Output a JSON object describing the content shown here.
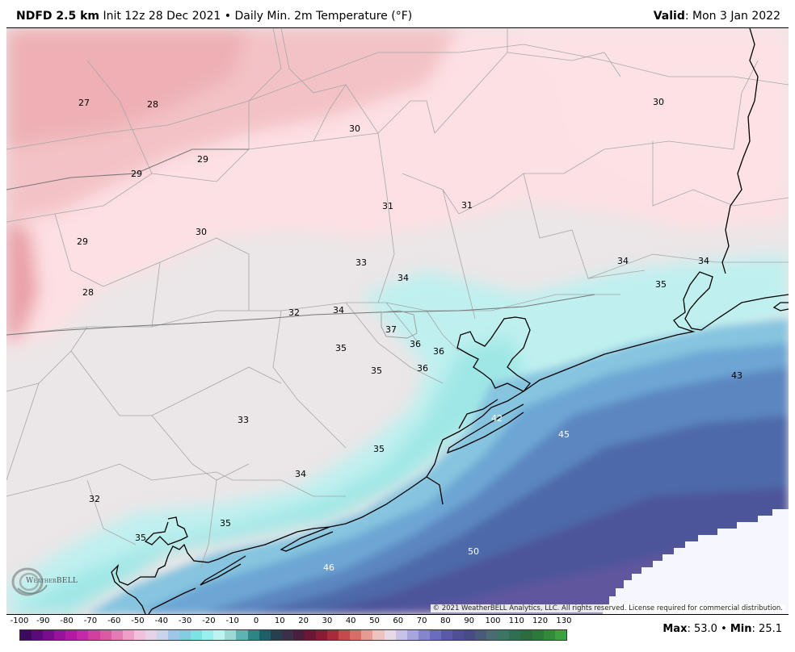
{
  "header": {
    "model": "NDFD 2.5 km",
    "init": "Init 12z 28 Dec 2021",
    "separator": "•",
    "product": "Daily Min. 2m Temperature (°F)",
    "valid_label": "Valid",
    "valid_value": ": Mon 3 Jan 2022"
  },
  "map": {
    "temp_labels": [
      "27",
      "28",
      "30",
      "30",
      "29",
      "29",
      "30",
      "31",
      "31",
      "29",
      "33",
      "34",
      "34",
      "34",
      "35",
      "28",
      "32",
      "34",
      "37",
      "36",
      "36",
      "35",
      "35",
      "36",
      "43",
      "42",
      "45",
      "33",
      "35",
      "34",
      "32",
      "35",
      "35",
      "50",
      "46"
    ],
    "credit": "© 2021 WeatherBELL Analytics, LLC. All rights reserved. License required for commercial distribution.",
    "logo_text": "WeatherBELL"
  },
  "legend": {
    "ticks": [
      "-100",
      "-90",
      "-80",
      "-70",
      "-60",
      "-50",
      "-40",
      "-30",
      "-20",
      "-10",
      "0",
      "10",
      "20",
      "30",
      "40",
      "50",
      "60",
      "70",
      "80",
      "90",
      "100",
      "110",
      "120",
      "130"
    ],
    "colors": [
      "#3d0a5e",
      "#5a0b7a",
      "#7a0d8e",
      "#97139a",
      "#b31aa3",
      "#c52aa6",
      "#d13f9f",
      "#dc5aa4",
      "#e57bb4",
      "#ee9fc8",
      "#f2bfdc",
      "#e6d3ea",
      "#c7d4ec",
      "#9fc6e8",
      "#7fcfe0",
      "#7be3e4",
      "#98f0ee",
      "#bff3f1",
      "#9fd7d4",
      "#5fb3b0",
      "#2e8684",
      "#1f5e68",
      "#27404f",
      "#3c2f4a",
      "#4b1e3e",
      "#6a1836",
      "#8a1b35",
      "#a92b3a",
      "#c44a4c",
      "#d86f66",
      "#e49b92",
      "#eec3bd",
      "#e9d9e6",
      "#c8c3e6",
      "#a7a6dc",
      "#8585cc",
      "#6a6dbd",
      "#5b5aa8",
      "#4e4f95",
      "#474c86",
      "#4a5a7c",
      "#4a6a74",
      "#3c7563",
      "#2f6f52",
      "#2e6b3f",
      "#2d7a38",
      "#338a3b",
      "#40a040"
    ],
    "stats_max_label": "Max",
    "stats_max": ": 53.0",
    "stats_sep": " • ",
    "stats_min_label": "Min",
    "stats_min": ": 25.1"
  }
}
